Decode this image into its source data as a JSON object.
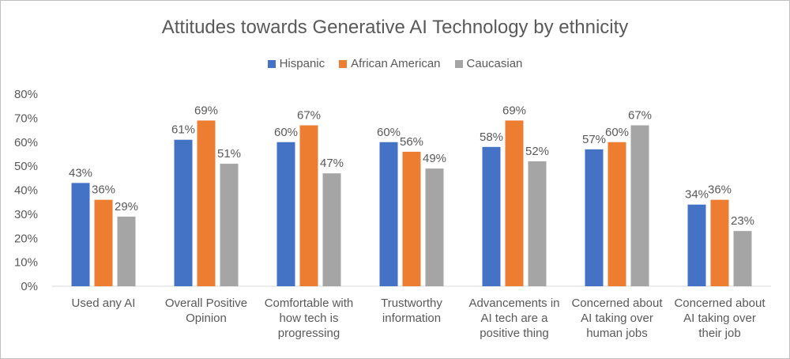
{
  "chart_data": {
    "type": "bar",
    "title": "Attitudes towards Generative AI Technology by ethnicity",
    "categories": [
      [
        "Used any AI"
      ],
      [
        "Overall Positive",
        "Opinion"
      ],
      [
        "Comfortable with",
        "how tech is",
        "progressing"
      ],
      [
        "Trustworthy",
        "information"
      ],
      [
        "Advancements in",
        "AI tech are a",
        "positive thing"
      ],
      [
        "Concerned about",
        "AI taking over",
        "human jobs"
      ],
      [
        "Concerned about",
        "AI taking over",
        "their job"
      ]
    ],
    "series": [
      {
        "name": "Hispanic",
        "color": "#4472C4",
        "values": [
          43,
          61,
          60,
          60,
          58,
          57,
          34
        ]
      },
      {
        "name": "African American",
        "color": "#ED7D31",
        "values": [
          36,
          69,
          67,
          56,
          69,
          60,
          36
        ]
      },
      {
        "name": "Caucasian",
        "color": "#A5A5A5",
        "values": [
          29,
          51,
          47,
          49,
          52,
          67,
          23
        ]
      }
    ],
    "data_labels": [
      [
        "43%",
        "61%",
        "60%",
        "60%",
        "58%",
        "57%",
        "34%"
      ],
      [
        "36%",
        "69%",
        "67%",
        "56%",
        "69%",
        "60%",
        "36%"
      ],
      [
        "29%",
        "51%",
        "47%",
        "49%",
        "52%",
        "67%",
        "23%"
      ]
    ],
    "ytick_labels": [
      "0%",
      "10%",
      "20%",
      "30%",
      "40%",
      "50%",
      "60%",
      "70%",
      "80%"
    ],
    "ylim": [
      0,
      80
    ],
    "grid": false,
    "legend_position": "top"
  }
}
